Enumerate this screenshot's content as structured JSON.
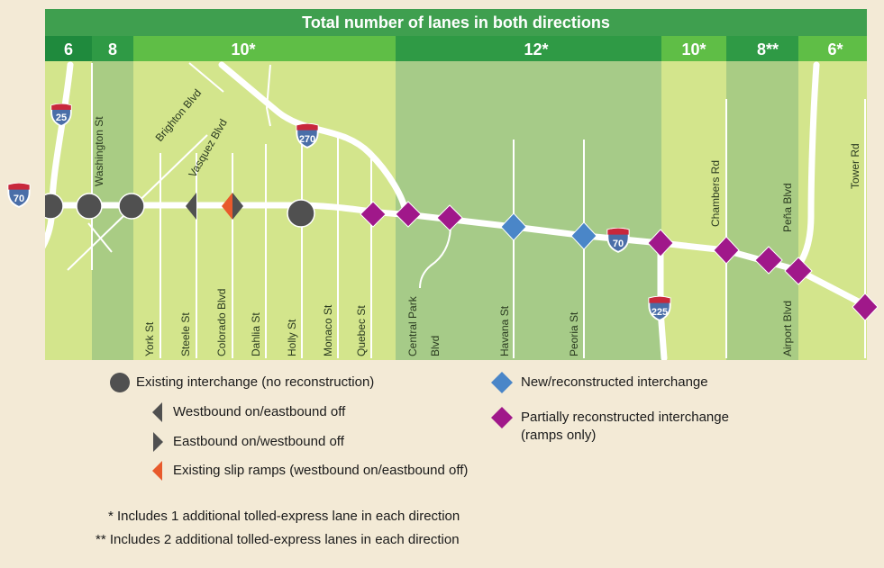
{
  "header": {
    "title": "Total number of lanes in both directions"
  },
  "lane_counts": [
    "6",
    "8",
    "10*",
    "12*",
    "10*",
    "8**",
    "6*"
  ],
  "shields": {
    "i70_west": "70",
    "i25": "25",
    "i270": "270",
    "i70_east": "70",
    "i225": "225"
  },
  "streets": {
    "washington": "Washington St",
    "brighton": "Brighton Blvd",
    "vasquez": "Vasquez Blvd",
    "york": "York St",
    "steele": "Steele St",
    "colorado": "Colorado Blvd",
    "dahlia": "Dahlia St",
    "holly": "Holly St",
    "monaco": "Monaco St",
    "quebec": "Quebec St",
    "central_park_1": "Central Park",
    "central_park_2": "Blvd",
    "havana": "Havana St",
    "peoria": "Peoria St",
    "chambers": "Chambers Rd",
    "pena": "Peña Blvd",
    "airport": "Airport Blvd",
    "tower": "Tower Rd"
  },
  "legend": {
    "existing": "Existing interchange (no reconstruction)",
    "wb_on_eb_off": "Westbound on/eastbound off",
    "eb_on_wb_off": "Eastbound on/westbound off",
    "slip_ramps": "Existing slip ramps (westbound on/eastbound off)",
    "new": "New/reconstructed interchange",
    "partial_1": "Partially reconstructed interchange",
    "partial_2": "(ramps only)"
  },
  "footnotes": {
    "single": "* Includes 1 additional tolled-express lane in each direction",
    "double": "** Includes 2 additional tolled-express lanes in each direction"
  },
  "colors": {
    "background": "#f3ead6",
    "band_light": "#d3e58c",
    "band_mid": "#a9cc84",
    "band_wide": "#a6cb88",
    "header_dark": "#3f9f4f",
    "lane_dark": "#1f8a3d",
    "lane_light": "#5fbe46",
    "road": "#ffffff",
    "existing_interchange": "#505050",
    "new_interchange": "#4a86c8",
    "partial_interchange": "#a0188a",
    "slip_ramp": "#e85a2c",
    "interstate_blue": "#5a78b0",
    "interstate_red": "#c8283c"
  }
}
